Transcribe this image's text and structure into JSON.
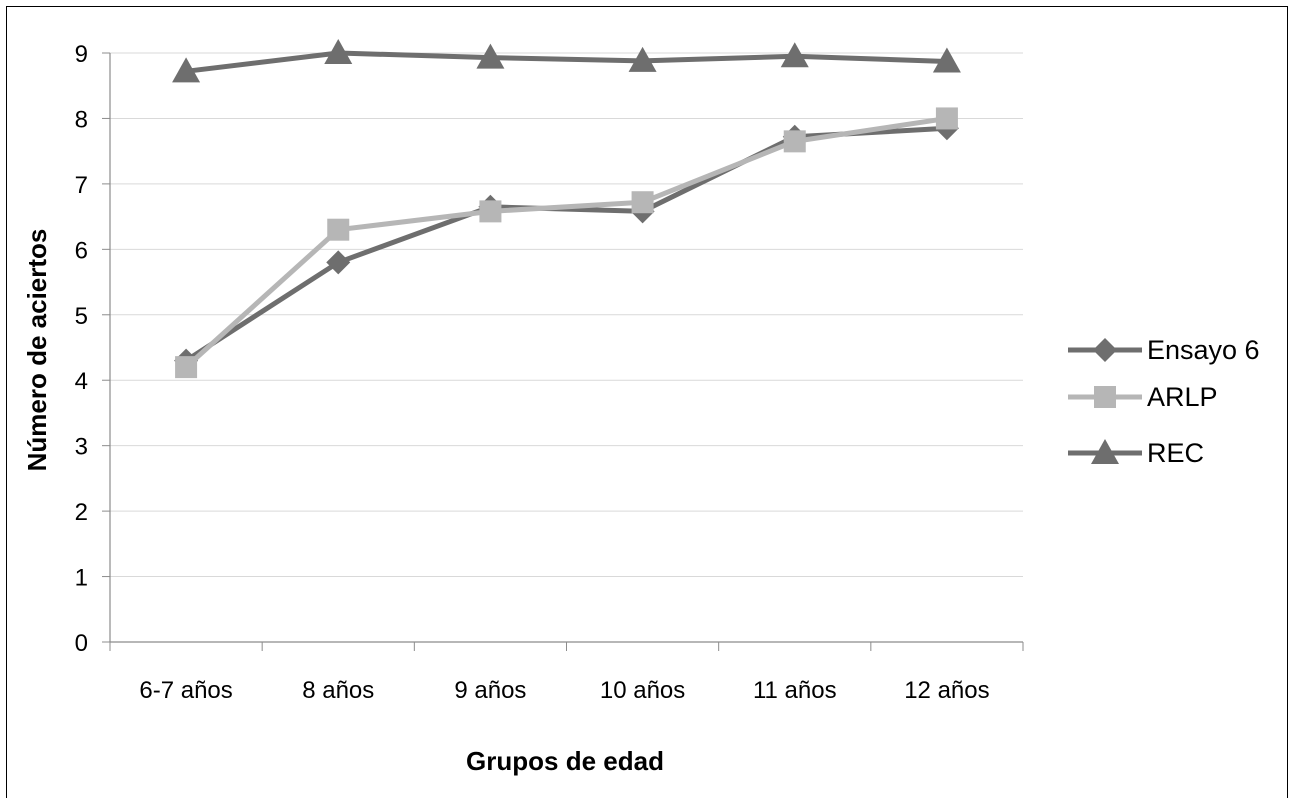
{
  "chart_data": {
    "type": "line",
    "title": "",
    "xlabel": "Grupos de edad",
    "ylabel": "Número de aciertos",
    "categories": [
      "6-7 años",
      "8 años",
      "9 años",
      "10 años",
      "11 años",
      "12 años"
    ],
    "yticks": [
      "0",
      "1",
      "2",
      "3",
      "4",
      "5",
      "6",
      "7",
      "8",
      "9"
    ],
    "ylim": [
      0,
      9
    ],
    "grid": true,
    "legend_position": "right",
    "series": [
      {
        "name": "Ensayo 6",
        "marker": "diamond",
        "color": "#6e6e6e",
        "values": [
          4.3,
          5.8,
          6.65,
          6.58,
          7.72,
          7.85
        ]
      },
      {
        "name": "ARLP",
        "marker": "square",
        "color": "#b6b6b6",
        "values": [
          4.2,
          6.3,
          6.58,
          6.72,
          7.65,
          8.0
        ]
      },
      {
        "name": "REC",
        "marker": "triangle",
        "color": "#6e6e6e",
        "values": [
          8.72,
          9.0,
          8.93,
          8.88,
          8.95,
          8.87
        ]
      }
    ]
  }
}
